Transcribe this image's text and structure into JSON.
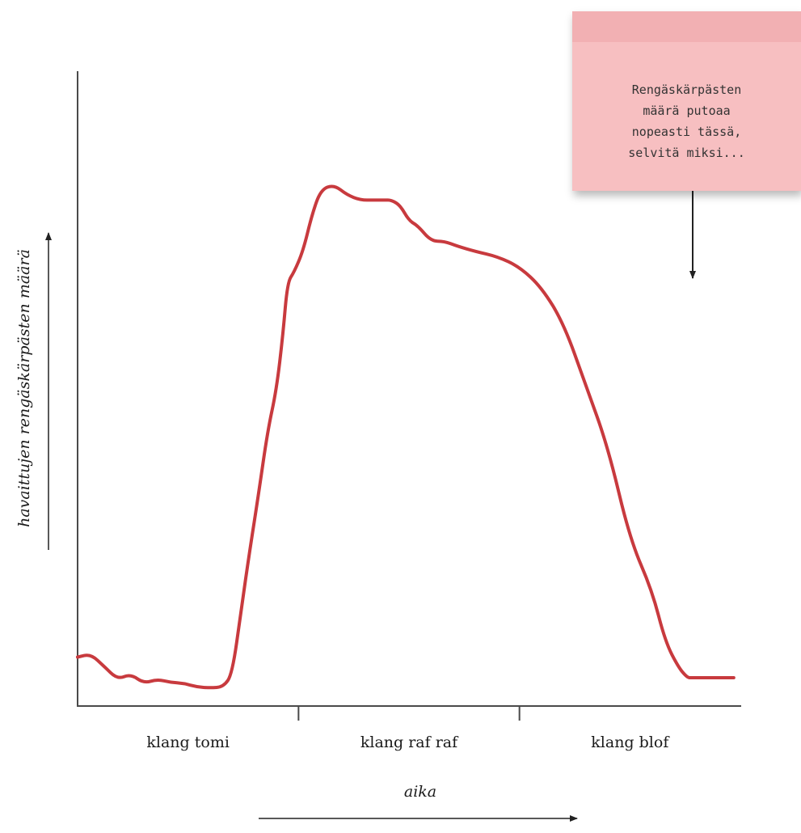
{
  "chart_data": {
    "type": "line",
    "title": "",
    "xlabel": "aika",
    "ylabel": "havaittujen rengäskärpästen määrä",
    "categories": [
      "klang tomi",
      "klang raf raf",
      "klang blof"
    ],
    "xlim": [
      0,
      3
    ],
    "ylim": [
      0,
      100
    ],
    "grid": false,
    "series": [
      {
        "color": "#c83a3e",
        "x": [
          0,
          0.06,
          0.12,
          0.18,
          0.24,
          0.3,
          0.36,
          0.42,
          0.48,
          0.54,
          0.6,
          0.66,
          0.7,
          0.74,
          0.78,
          0.82,
          0.86,
          0.9,
          0.93,
          0.95,
          0.98,
          1.02,
          1.06,
          1.1,
          1.16,
          1.22,
          1.28,
          1.34,
          1.39,
          1.42,
          1.46,
          1.5,
          1.54,
          1.6,
          1.66,
          1.72,
          1.8,
          1.9,
          2.0,
          2.1,
          2.2,
          2.3,
          2.4,
          2.5,
          2.6,
          2.66,
          2.72,
          2.76,
          2.78,
          2.82,
          2.86,
          2.9,
          2.94,
          2.97
        ],
        "y": [
          7,
          7.6,
          5.2,
          2.7,
          3.7,
          1.9,
          2.7,
          2.1,
          1.9,
          1.2,
          1.0,
          1.2,
          3.7,
          16,
          28,
          39,
          51,
          59,
          70,
          80,
          82,
          86,
          93,
          98,
          99,
          97,
          96,
          96,
          96,
          96,
          95,
          92,
          91,
          88,
          88,
          87,
          86,
          85,
          83,
          79,
          72,
          60,
          48,
          30,
          20,
          10,
          5,
          3,
          3,
          3,
          3,
          3,
          3,
          3
        ]
      }
    ]
  },
  "annotation": {
    "text": "Rengäskärpästen\nmäärä putoaa\nnopeasti tässä,\nselvitä miksi...",
    "points_to": "klang blof"
  }
}
